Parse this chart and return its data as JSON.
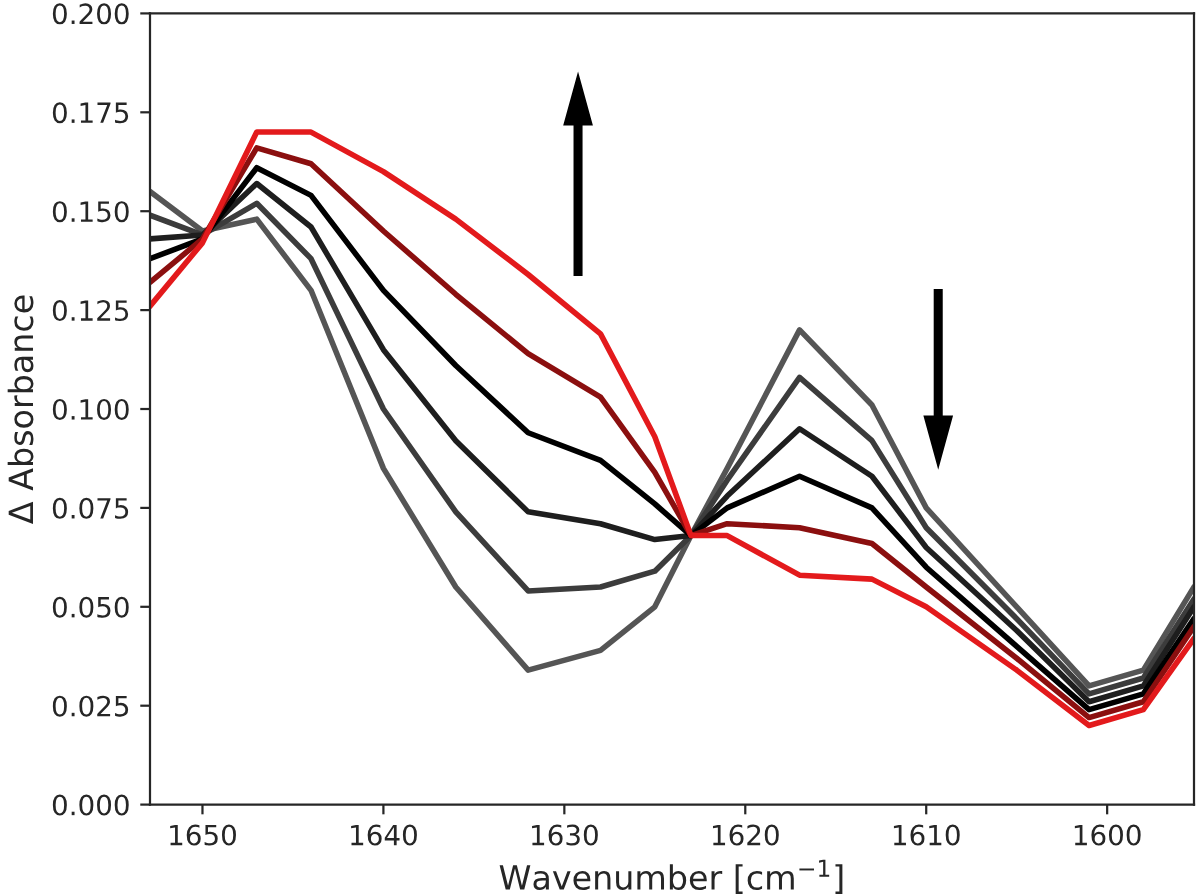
{
  "chart_data": {
    "type": "line",
    "xlabel": "Wavenumber [cm$^{−1}$]",
    "ylabel": "Δ Absorbance",
    "x": [
      1652.9,
      1650,
      1647,
      1644,
      1640,
      1636,
      1632,
      1628,
      1625,
      1623,
      1621,
      1617,
      1613,
      1610,
      1605,
      1601,
      1598,
      1595.2
    ],
    "series": [
      {
        "color": "#555555",
        "values": [
          0.155,
          0.145,
          0.148,
          0.13,
          0.085,
          0.055,
          0.034,
          0.039,
          0.05,
          0.068,
          0.085,
          0.12,
          0.101,
          0.075,
          0.05,
          0.03,
          0.034,
          0.055
        ]
      },
      {
        "color": "#3c3c3c",
        "values": [
          0.149,
          0.144,
          0.152,
          0.138,
          0.1,
          0.074,
          0.054,
          0.055,
          0.059,
          0.068,
          0.082,
          0.108,
          0.092,
          0.07,
          0.047,
          0.028,
          0.032,
          0.052
        ]
      },
      {
        "color": "#1e1e1e",
        "values": [
          0.143,
          0.144,
          0.157,
          0.146,
          0.115,
          0.092,
          0.074,
          0.071,
          0.067,
          0.068,
          0.078,
          0.095,
          0.083,
          0.065,
          0.044,
          0.026,
          0.03,
          0.05
        ]
      },
      {
        "color": "#000000",
        "values": [
          0.138,
          0.143,
          0.161,
          0.154,
          0.13,
          0.111,
          0.094,
          0.087,
          0.076,
          0.068,
          0.075,
          0.083,
          0.075,
          0.06,
          0.04,
          0.024,
          0.028,
          0.047
        ]
      },
      {
        "color": "#8b0f0f",
        "values": [
          0.132,
          0.143,
          0.166,
          0.162,
          0.145,
          0.129,
          0.114,
          0.103,
          0.084,
          0.068,
          0.071,
          0.07,
          0.066,
          0.055,
          0.037,
          0.022,
          0.026,
          0.045
        ]
      },
      {
        "color": "#e31a1c",
        "values": [
          0.126,
          0.142,
          0.17,
          0.17,
          0.16,
          0.148,
          0.134,
          0.119,
          0.093,
          0.068,
          0.068,
          0.058,
          0.057,
          0.05,
          0.034,
          0.02,
          0.024,
          0.042
        ]
      }
    ],
    "xlim": [
      1652.9,
      1595.2
    ],
    "xticks": [
      1650,
      1640,
      1630,
      1620,
      1610,
      1600
    ],
    "ylim": [
      0,
      0.2
    ],
    "yticks": [
      {
        "value": 0,
        "label": "0.000"
      },
      {
        "value": 0.025,
        "label": "0.025"
      },
      {
        "value": 0.05,
        "label": "0.050"
      },
      {
        "value": 0.075,
        "label": "0.075"
      },
      {
        "value": 0.1,
        "label": "0.100"
      },
      {
        "value": 0.125,
        "label": "0.125"
      },
      {
        "value": 0.15,
        "label": "0.150"
      },
      {
        "value": 0.175,
        "label": "0.175"
      },
      {
        "value": 0.2,
        "label": "0.200"
      }
    ],
    "grid": false,
    "legend": false
  }
}
